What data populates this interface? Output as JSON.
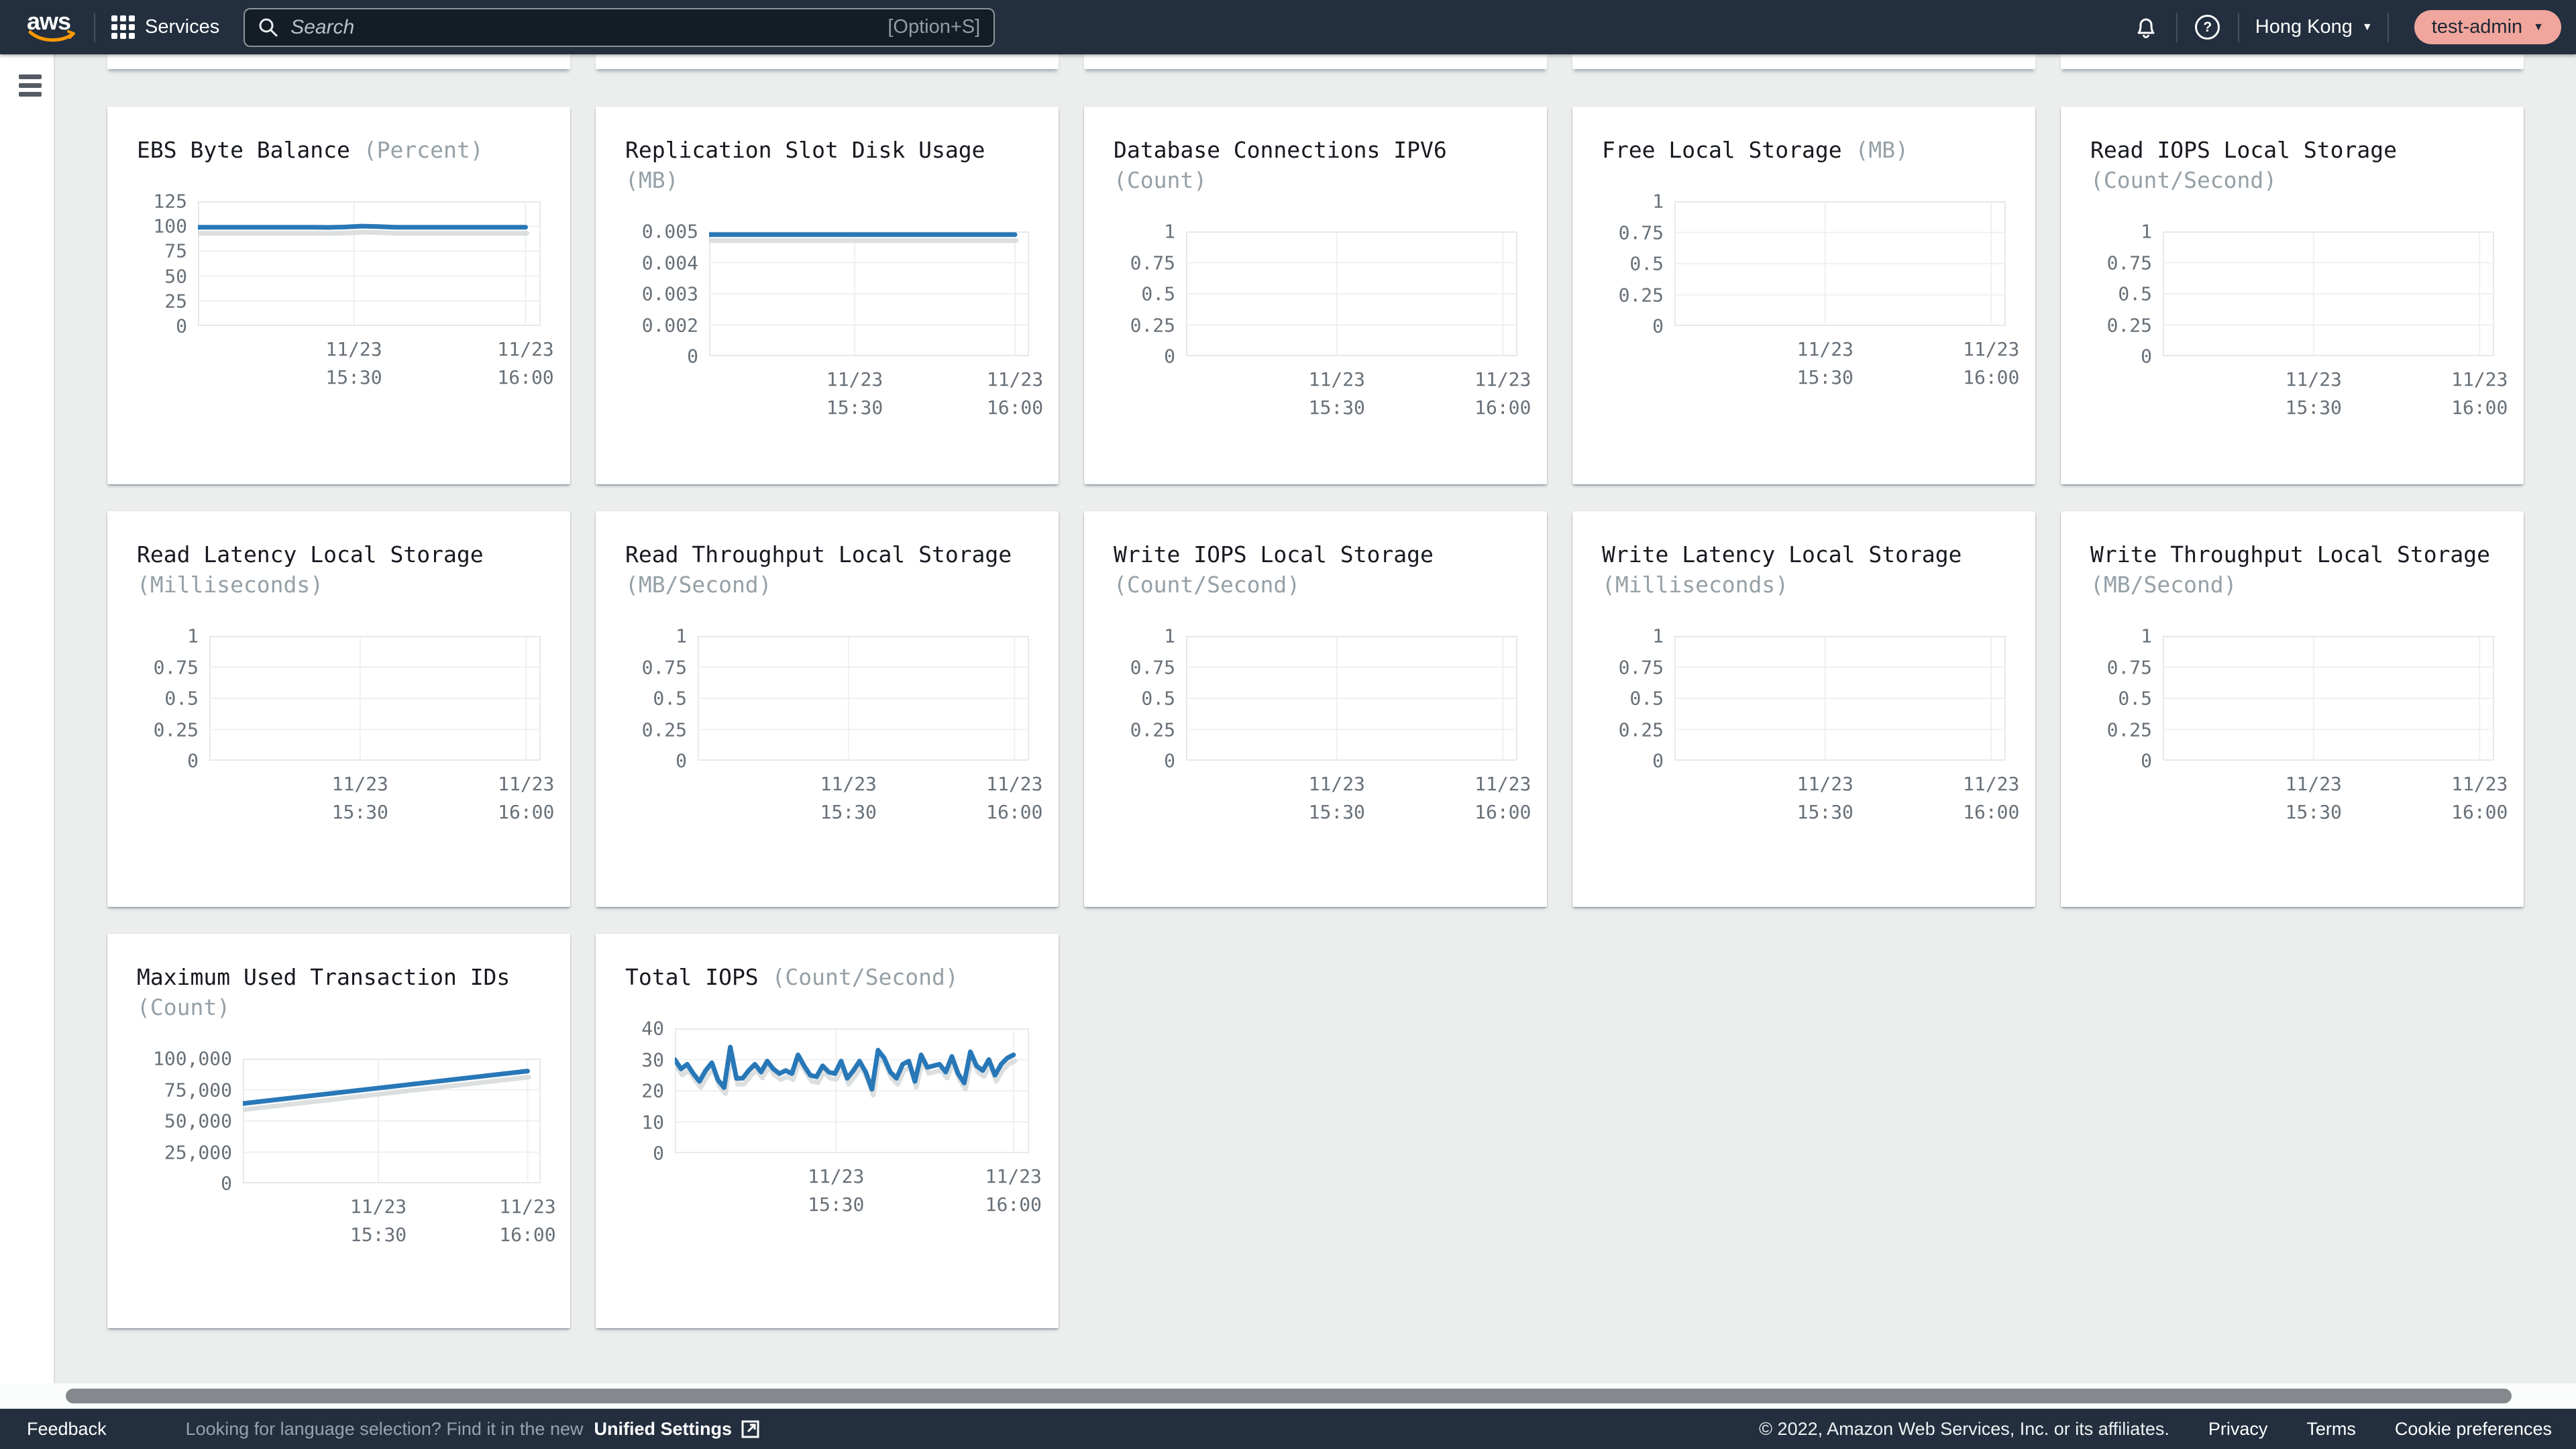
{
  "topbar": {
    "logo": "aws",
    "services_label": "Services",
    "search_placeholder": "Search",
    "search_shortcut": "[Option+S]",
    "region": "Hong Kong",
    "account": "test-admin",
    "caret": "▼"
  },
  "footer": {
    "feedback": "Feedback",
    "language_hint": "Looking for language selection? Find it in the new",
    "unified_settings": "Unified Settings",
    "copyright": "© 2022, Amazon Web Services, Inc. or its affiliates.",
    "privacy": "Privacy",
    "terms": "Terms",
    "cookie_preferences": "Cookie preferences"
  },
  "colors": {
    "navy": "#232f3e",
    "accent_line": "#2878b8",
    "line_shadow": "#d6d9db",
    "grid_line": "#eef0f1",
    "plot_border": "#e6e9ea",
    "axis_text": "#687078",
    "title_text": "#16191f",
    "unit_text": "#95a0a7",
    "account_pill": "#f0a69d",
    "aws_orange": "#ff9900"
  },
  "x_axis": {
    "data_end_frac": 0.956,
    "ticks": [
      {
        "line1": "11/23",
        "line2": "15:30",
        "frac": 0.455
      },
      {
        "line1": "11/23",
        "line2": "16:00",
        "frac": 0.956
      }
    ]
  },
  "chart_data": [
    {
      "type": "line",
      "row": 1,
      "title": "EBS Byte Balance",
      "unit": "(Percent)",
      "yticks": [
        "125",
        "100",
        "75",
        "50",
        "25",
        "0"
      ],
      "ytick_values": [
        125,
        100,
        75,
        50,
        25,
        0
      ],
      "ylim": [
        0,
        125
      ],
      "values": [
        99,
        99,
        99,
        99,
        99,
        99,
        99,
        99,
        98.8,
        99.2,
        100.1,
        99.6,
        99,
        98.9,
        99,
        99,
        99,
        99,
        99,
        99,
        99
      ]
    },
    {
      "type": "line",
      "row": 1,
      "title": "Replication Slot Disk Usage",
      "unit": "(MB)",
      "yticks": [
        "0.005",
        "0.004",
        "0.003",
        "0.002",
        "0"
      ],
      "ytick_values": [
        0.005,
        0.004,
        0.003,
        0.002,
        0
      ],
      "ylim": [
        0,
        0.005
      ],
      "values": [
        0.0049,
        0.0049,
        0.0049,
        0.0049,
        0.0049,
        0.0049,
        0.0049,
        0.0049,
        0.0049,
        0.0049,
        0.0049
      ]
    },
    {
      "type": "line",
      "row": 1,
      "title": "Database Connections IPV6",
      "unit": "(Count)",
      "yticks": [
        "1",
        "0.75",
        "0.5",
        "0.25",
        "0"
      ],
      "ytick_values": [
        1,
        0.75,
        0.5,
        0.25,
        0
      ],
      "ylim": [
        0,
        1
      ],
      "values": null
    },
    {
      "type": "line",
      "row": 1,
      "title": "Free Local Storage",
      "unit": "(MB)",
      "yticks": [
        "1",
        "0.75",
        "0.5",
        "0.25",
        "0"
      ],
      "ytick_values": [
        1,
        0.75,
        0.5,
        0.25,
        0
      ],
      "ylim": [
        0,
        1
      ],
      "values": null
    },
    {
      "type": "line",
      "row": 1,
      "title": "Read IOPS Local Storage",
      "unit": "(Count/Second)",
      "yticks": [
        "1",
        "0.75",
        "0.5",
        "0.25",
        "0"
      ],
      "ytick_values": [
        1,
        0.75,
        0.5,
        0.25,
        0
      ],
      "ylim": [
        0,
        1
      ],
      "values": null
    },
    {
      "type": "line",
      "row": 2,
      "title": "Read Latency Local Storage",
      "unit": "(Milliseconds)",
      "yticks": [
        "1",
        "0.75",
        "0.5",
        "0.25",
        "0"
      ],
      "ytick_values": [
        1,
        0.75,
        0.5,
        0.25,
        0
      ],
      "ylim": [
        0,
        1
      ],
      "values": null
    },
    {
      "type": "line",
      "row": 2,
      "title": "Read Throughput Local Storage",
      "unit": "(MB/Second)",
      "yticks": [
        "1",
        "0.75",
        "0.5",
        "0.25",
        "0"
      ],
      "ytick_values": [
        1,
        0.75,
        0.5,
        0.25,
        0
      ],
      "ylim": [
        0,
        1
      ],
      "values": null
    },
    {
      "type": "line",
      "row": 2,
      "title": "Write IOPS Local Storage",
      "unit": "(Count/Second)",
      "yticks": [
        "1",
        "0.75",
        "0.5",
        "0.25",
        "0"
      ],
      "ytick_values": [
        1,
        0.75,
        0.5,
        0.25,
        0
      ],
      "ylim": [
        0,
        1
      ],
      "values": null
    },
    {
      "type": "line",
      "row": 2,
      "title": "Write Latency Local Storage",
      "unit": "(Milliseconds)",
      "yticks": [
        "1",
        "0.75",
        "0.5",
        "0.25",
        "0"
      ],
      "ytick_values": [
        1,
        0.75,
        0.5,
        0.25,
        0
      ],
      "ylim": [
        0,
        1
      ],
      "values": null
    },
    {
      "type": "line",
      "row": 2,
      "title": "Write Throughput Local Storage",
      "unit": "(MB/Second)",
      "yticks": [
        "1",
        "0.75",
        "0.5",
        "0.25",
        "0"
      ],
      "ytick_values": [
        1,
        0.75,
        0.5,
        0.25,
        0
      ],
      "ylim": [
        0,
        1
      ],
      "values": null
    },
    {
      "type": "line",
      "row": 3,
      "title": "Maximum Used Transaction IDs",
      "unit": "(Count)",
      "yticks": [
        "100,000",
        "75,000",
        "50,000",
        "25,000",
        "0"
      ],
      "ytick_values": [
        100000,
        75000,
        50000,
        25000,
        0
      ],
      "ylim": [
        0,
        100000
      ],
      "values": [
        64000,
        77000,
        90000
      ]
    },
    {
      "type": "line",
      "row": 3,
      "title": "Total IOPS",
      "unit": "(Count/Second)",
      "yticks": [
        "40",
        "30",
        "20",
        "10",
        "0"
      ],
      "ytick_values": [
        40,
        30,
        20,
        10,
        0
      ],
      "ylim": [
        0,
        40
      ],
      "values": [
        30,
        27,
        28.5,
        25.5,
        23,
        26.5,
        29,
        23.5,
        21,
        34,
        24,
        24,
        26.5,
        28.5,
        26,
        29.5,
        27,
        25.5,
        26.5,
        25.5,
        31.5,
        28,
        25,
        24.5,
        28,
        26,
        25.5,
        29.5,
        24,
        26.5,
        29.5,
        26,
        20.5,
        33,
        30.5,
        26,
        24,
        28.5,
        29.5,
        23,
        31.5,
        27.5,
        28,
        28.5,
        26,
        31,
        25.5,
        22.5,
        32.5,
        28,
        26.5,
        30,
        25,
        28.5,
        30.5,
        31.5
      ]
    }
  ]
}
